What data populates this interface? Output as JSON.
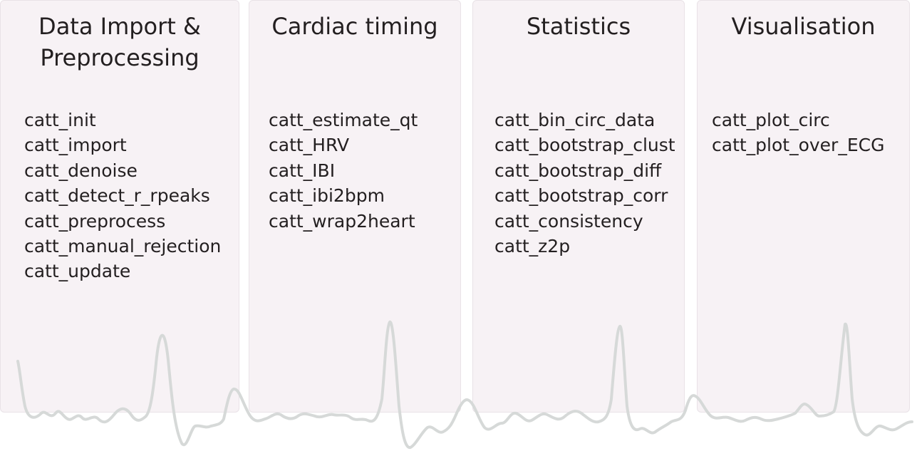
{
  "panels": [
    {
      "title": "Data Import &\nPreprocessing",
      "items": [
        "catt_init",
        "catt_import",
        "catt_denoise",
        "catt_detect_r_rpeaks",
        "catt_preprocess",
        "catt_manual_rejection",
        "catt_update"
      ]
    },
    {
      "title": "Cardiac timing",
      "items": [
        "catt_estimate_qt",
        "catt_HRV",
        "catt_IBI",
        "catt_ibi2bpm",
        "catt_wrap2heart"
      ]
    },
    {
      "title": "Statistics",
      "items": [
        "catt_bin_circ_data",
        "catt_bootstrap_clust",
        "catt_bootstrap_diff",
        "catt_bootstrap_corr",
        "catt_consistency",
        "catt_z2p"
      ]
    },
    {
      "title": "Visualisation",
      "items": [
        "catt_plot_circ",
        "catt_plot_over_ECG"
      ]
    }
  ],
  "colors": {
    "panel_bg": "#f7f2f5",
    "panel_border": "#e9e2e7",
    "text": "#231f20",
    "ecg_trace": "#d6d9d8"
  }
}
